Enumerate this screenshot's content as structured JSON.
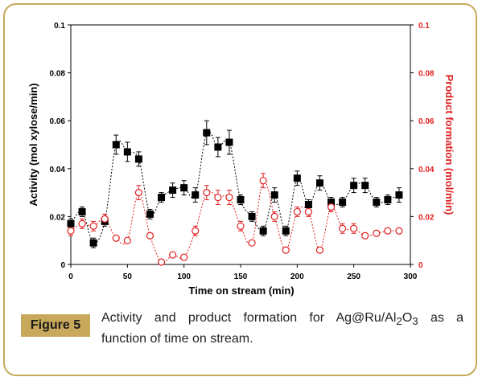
{
  "caption": {
    "label": "Figure 5",
    "line1_pre": "Activity and product formation for Ag@Ru/Al",
    "sub1": "2",
    "mid": "O",
    "sub2": "3",
    "line1_post": " as a",
    "line2": "function of time on stream."
  },
  "colors": {
    "activity": "#000000",
    "product": "#e02020",
    "border": "#c8a85a"
  },
  "chart_data": {
    "type": "scatter",
    "title": "",
    "xlabel": "Time on stream (min)",
    "ylabel": "Activity (mol xylose/min)",
    "y2label": "Product formation (mol/min)",
    "xlim": [
      0,
      300
    ],
    "ylim": [
      0,
      0.1
    ],
    "y2lim": [
      0,
      0.1
    ],
    "x_ticks": [
      "0",
      "50",
      "100",
      "150",
      "200",
      "250",
      "300"
    ],
    "y_ticks": [
      "0",
      "0.02",
      "0.04",
      "0.06",
      "0.08",
      "0.1"
    ],
    "y2_ticks": [
      "0",
      "0.02",
      "0.04",
      "0.06",
      "0.08",
      "0.1"
    ],
    "series": [
      {
        "marker": "filled-square",
        "axis": "left",
        "x": [
          0,
          10,
          20,
          30,
          40,
          50,
          60,
          70,
          80,
          90,
          100,
          110,
          120,
          130,
          140,
          150,
          160,
          170,
          180,
          190,
          200,
          210,
          220,
          230,
          240,
          250,
          260,
          270,
          280,
          290
        ],
        "y": [
          0.017,
          0.022,
          0.009,
          0.018,
          0.05,
          0.047,
          0.044,
          0.021,
          0.028,
          0.031,
          0.032,
          0.029,
          0.055,
          0.049,
          0.051,
          0.027,
          0.02,
          0.014,
          0.029,
          0.014,
          0.036,
          0.025,
          0.034,
          0.026,
          0.026,
          0.033,
          0.033,
          0.026,
          0.027,
          0.029
        ],
        "err": [
          0.002,
          0.002,
          0.002,
          0.002,
          0.004,
          0.004,
          0.003,
          0.002,
          0.002,
          0.003,
          0.003,
          0.003,
          0.005,
          0.004,
          0.005,
          0.002,
          0.002,
          0.002,
          0.003,
          0.002,
          0.003,
          0.002,
          0.003,
          0.002,
          0.002,
          0.003,
          0.003,
          0.002,
          0.002,
          0.003
        ]
      },
      {
        "marker": "open-circle",
        "axis": "right",
        "x": [
          0,
          10,
          20,
          30,
          40,
          50,
          60,
          70,
          80,
          90,
          100,
          110,
          120,
          130,
          140,
          150,
          160,
          170,
          180,
          190,
          200,
          210,
          220,
          230,
          240,
          250,
          260,
          270,
          280,
          290
        ],
        "y": [
          0.014,
          0.017,
          0.016,
          0.019,
          0.011,
          0.01,
          0.03,
          0.012,
          0.001,
          0.004,
          0.003,
          0.014,
          0.03,
          0.028,
          0.028,
          0.016,
          0.009,
          0.035,
          0.02,
          0.006,
          0.022,
          0.022,
          0.006,
          0.024,
          0.015,
          0.015,
          0.012,
          0.013,
          0.014,
          0.014
        ],
        "err": [
          0.002,
          0.002,
          0.002,
          0.002,
          0.001,
          0.001,
          0.003,
          0.001,
          0.001,
          0.001,
          0.001,
          0.002,
          0.003,
          0.003,
          0.003,
          0.002,
          0.001,
          0.003,
          0.002,
          0.001,
          0.002,
          0.002,
          0.001,
          0.002,
          0.002,
          0.002,
          0.001,
          0.001,
          0.001,
          0.001
        ]
      }
    ]
  }
}
